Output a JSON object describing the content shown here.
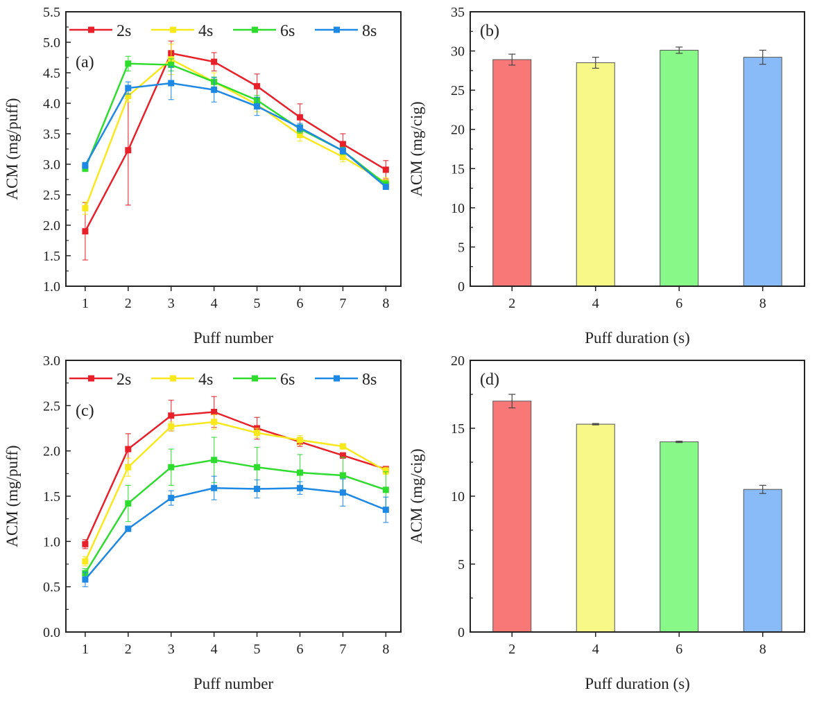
{
  "chart_data": [
    {
      "type": "line",
      "panel_label": "(a)",
      "xlabel": "Puff number",
      "ylabel": "ACM (mg/puff)",
      "x": [
        1,
        2,
        3,
        4,
        5,
        6,
        7,
        8
      ],
      "xlim": [
        0.55,
        8.35
      ],
      "ylim": [
        1.0,
        5.5
      ],
      "yticks": [
        1.0,
        1.5,
        2.0,
        2.5,
        3.0,
        3.5,
        4.0,
        4.5,
        5.0,
        5.5
      ],
      "ytick_decimals": 1,
      "legend": "top",
      "series": [
        {
          "name": "2s",
          "color": "#e8202a",
          "values": [
            1.9,
            3.23,
            4.82,
            4.68,
            4.28,
            3.77,
            3.33,
            2.91
          ],
          "errors": [
            0.47,
            0.9,
            0.2,
            0.15,
            0.2,
            0.22,
            0.17,
            0.15
          ]
        },
        {
          "name": "4s",
          "color": "#f8e81c",
          "values": [
            2.28,
            4.12,
            4.72,
            4.35,
            3.98,
            3.48,
            3.12,
            2.7
          ],
          "errors": [
            0.1,
            0.1,
            0.25,
            0.15,
            0.12,
            0.1,
            0.08,
            0.08
          ]
        },
        {
          "name": "6s",
          "color": "#2edc2e",
          "values": [
            2.93,
            4.65,
            4.63,
            4.35,
            4.05,
            3.58,
            3.22,
            2.67
          ],
          "errors": [
            0.05,
            0.12,
            0.1,
            0.08,
            0.08,
            0.07,
            0.06,
            0.06
          ]
        },
        {
          "name": "8s",
          "color": "#1e88e5",
          "values": [
            2.98,
            4.25,
            4.33,
            4.22,
            3.95,
            3.6,
            3.22,
            2.63
          ],
          "errors": [
            0.05,
            0.1,
            0.27,
            0.2,
            0.15,
            0.07,
            0.05,
            0.04
          ]
        }
      ]
    },
    {
      "type": "bar",
      "panel_label": "(b)",
      "xlabel": "Puff duration (s)",
      "ylabel": "ACM (mg/cig)",
      "categories": [
        "2",
        "4",
        "6",
        "8"
      ],
      "values": [
        28.9,
        28.5,
        30.1,
        29.2
      ],
      "errors": [
        0.7,
        0.7,
        0.4,
        0.9
      ],
      "colors": [
        "#f87878",
        "#f8f888",
        "#88f888",
        "#88bbf8"
      ],
      "ylim": [
        0,
        35
      ],
      "yticks": [
        0,
        5,
        10,
        15,
        20,
        25,
        30,
        35
      ],
      "ytick_decimals": 0
    },
    {
      "type": "line",
      "panel_label": "(c)",
      "xlabel": "Puff number",
      "ylabel": "ACM (mg/puff)",
      "x": [
        1,
        2,
        3,
        4,
        5,
        6,
        7,
        8
      ],
      "xlim": [
        0.55,
        8.35
      ],
      "ylim": [
        0.0,
        3.0
      ],
      "yticks": [
        0.0,
        0.5,
        1.0,
        1.5,
        2.0,
        2.5,
        3.0
      ],
      "ytick_decimals": 1,
      "legend": "top",
      "series": [
        {
          "name": "2s",
          "color": "#e8202a",
          "values": [
            0.97,
            2.02,
            2.39,
            2.43,
            2.25,
            2.1,
            1.95,
            1.8
          ],
          "errors": [
            0.05,
            0.17,
            0.17,
            0.17,
            0.12,
            0.05,
            0.03,
            0.02
          ]
        },
        {
          "name": "4s",
          "color": "#f8e81c",
          "values": [
            0.78,
            1.82,
            2.27,
            2.32,
            2.2,
            2.12,
            2.05,
            1.78
          ],
          "errors": [
            0.05,
            0.1,
            0.05,
            0.08,
            0.05,
            0.05,
            0.03,
            0.04
          ]
        },
        {
          "name": "6s",
          "color": "#2edc2e",
          "values": [
            0.65,
            1.42,
            1.82,
            1.9,
            1.82,
            1.76,
            1.73,
            1.57
          ],
          "errors": [
            0.05,
            0.2,
            0.2,
            0.25,
            0.22,
            0.2,
            0.2,
            0.2
          ]
        },
        {
          "name": "8s",
          "color": "#1e88e5",
          "values": [
            0.58,
            1.14,
            1.48,
            1.59,
            1.58,
            1.59,
            1.54,
            1.35
          ],
          "errors": [
            0.08,
            0.03,
            0.08,
            0.13,
            0.1,
            0.07,
            0.15,
            0.14
          ]
        }
      ]
    },
    {
      "type": "bar",
      "panel_label": "(d)",
      "xlabel": "Puff duration (s)",
      "ylabel": "ACM (mg/cig)",
      "categories": [
        "2",
        "4",
        "6",
        "8"
      ],
      "values": [
        17.0,
        15.3,
        14.0,
        10.5
      ],
      "errors": [
        0.5,
        0.05,
        0.05,
        0.3
      ],
      "colors": [
        "#f87878",
        "#f8f888",
        "#88f888",
        "#88bbf8"
      ],
      "ylim": [
        0,
        20
      ],
      "yticks": [
        0,
        5,
        10,
        15,
        20
      ],
      "ytick_decimals": 0
    }
  ]
}
